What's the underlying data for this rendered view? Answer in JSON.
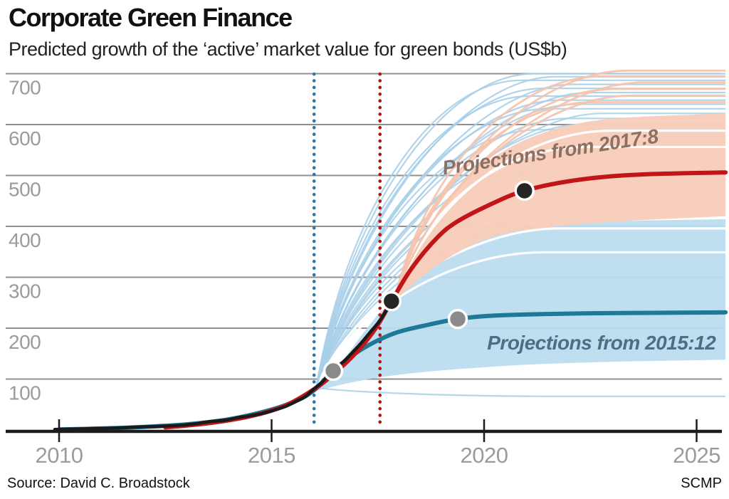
{
  "header": {
    "title": "Corporate Green Finance",
    "subtitle": "Predicted growth of the ‘active’ market value for green bonds (US$b)"
  },
  "footer": {
    "source": "Source: David C. Broadstock",
    "credit": "SCMP"
  },
  "colors": {
    "grid": "#909090",
    "axis": "#1b1b1b",
    "tick_label": "#9b9b9b",
    "band_blue": "#bcdcee",
    "spaghetti_blue": "#a9cfe9",
    "band_peach": "#f8cdba",
    "spaghetti_peach": "#f6c4ae",
    "white_arc": "#ffffff",
    "historical_line": "#1a1a1a",
    "projection_red": "#c11518",
    "projection_teal": "#1f7897",
    "vline_blue": "#2b77a5",
    "vline_red": "#b11510",
    "marker_black": "#252525",
    "marker_gray": "#8b8b8b",
    "label_2017": "#8c7063",
    "label_2015": "#4a7086"
  },
  "chart_data": {
    "type": "line",
    "title": "Corporate Green Finance",
    "subtitle": "Predicted growth of the 'active' market value for green bonds (US$b)",
    "unit": "US$b",
    "x_axis": {
      "ticks": [
        2010,
        2015,
        2020,
        2025
      ],
      "range": [
        2009.8,
        2025.8
      ],
      "grid": false
    },
    "y_axis": {
      "ticks": [
        100,
        200,
        300,
        400,
        500,
        600,
        700
      ],
      "range": [
        0,
        740
      ],
      "grid": true
    },
    "vlines": [
      {
        "name": "forecast-origin-2015-12",
        "year": 2016.0,
        "color_key": "vline_blue"
      },
      {
        "name": "forecast-origin-2017-8",
        "year": 2017.55,
        "color_key": "vline_red"
      }
    ],
    "series": [
      {
        "name": "historical",
        "color_key": "historical_line",
        "width": 4.5,
        "points": [
          [
            2009.9,
            1
          ],
          [
            2010.4,
            2
          ],
          [
            2010.9,
            3
          ],
          [
            2011.4,
            4
          ],
          [
            2011.9,
            6
          ],
          [
            2012.3,
            7
          ],
          [
            2012.8,
            9
          ],
          [
            2013.2,
            12
          ],
          [
            2013.5,
            16
          ],
          [
            2013.9,
            19
          ],
          [
            2014.2,
            24
          ],
          [
            2014.5,
            28
          ],
          [
            2014.8,
            33
          ],
          [
            2015.1,
            40
          ],
          [
            2015.35,
            47
          ],
          [
            2015.6,
            57
          ],
          [
            2015.8,
            66
          ],
          [
            2016.0,
            81
          ],
          [
            2016.2,
            95
          ],
          [
            2016.45,
            118
          ],
          [
            2016.7,
            135
          ],
          [
            2016.9,
            152
          ],
          [
            2017.1,
            170
          ],
          [
            2017.3,
            190
          ],
          [
            2017.5,
            210
          ],
          [
            2017.65,
            228
          ],
          [
            2017.82,
            253
          ]
        ]
      },
      {
        "name": "projection_2017_8",
        "color_key": "projection_red",
        "width": 6,
        "points": [
          [
            2012.5,
            5
          ],
          [
            2013.5,
            13
          ],
          [
            2014.5,
            27
          ],
          [
            2015.3,
            47
          ],
          [
            2016,
            80
          ],
          [
            2016.5,
            113
          ],
          [
            2017,
            153
          ],
          [
            2017.45,
            200
          ],
          [
            2017.82,
            253
          ],
          [
            2018.3,
            318
          ],
          [
            2018.9,
            378
          ],
          [
            2019.4,
            411
          ],
          [
            2020.3,
            449
          ],
          [
            2020.95,
            470
          ],
          [
            2021.8,
            486
          ],
          [
            2022.8,
            497
          ],
          [
            2024,
            503
          ],
          [
            2025.68,
            506
          ]
        ]
      },
      {
        "name": "projection_2015_12",
        "color_key": "projection_teal",
        "width": 6,
        "points": [
          [
            2010,
            1
          ],
          [
            2011,
            3
          ],
          [
            2012,
            6
          ],
          [
            2013,
            11
          ],
          [
            2014,
            21
          ],
          [
            2015,
            40
          ],
          [
            2015.6,
            58
          ],
          [
            2016,
            78
          ],
          [
            2016.45,
            116
          ],
          [
            2017,
            152
          ],
          [
            2017.5,
            176
          ],
          [
            2018,
            193
          ],
          [
            2018.7,
            207
          ],
          [
            2019.38,
            218
          ],
          [
            2020.1,
            224
          ],
          [
            2021,
            227
          ],
          [
            2022.3,
            229
          ],
          [
            2023.6,
            230
          ],
          [
            2025.68,
            231
          ]
        ]
      }
    ],
    "bands": [
      {
        "name": "fan_2015_12",
        "color_key": "band_blue",
        "opacity": 0.95,
        "top": [
          [
            2016.0,
            82
          ],
          [
            2016.6,
            130
          ],
          [
            2017.2,
            195
          ],
          [
            2017.8,
            258
          ],
          [
            2018.5,
            322
          ],
          [
            2019.2,
            362
          ],
          [
            2020,
            386
          ],
          [
            2021,
            398
          ],
          [
            2022.2,
            406
          ],
          [
            2023.6,
            411
          ],
          [
            2025.68,
            414
          ]
        ],
        "bottom": [
          [
            2016.0,
            76
          ],
          [
            2016.8,
            92
          ],
          [
            2017.6,
            104
          ],
          [
            2018.6,
            114
          ],
          [
            2019.8,
            122
          ],
          [
            2021.2,
            129
          ],
          [
            2023,
            134
          ],
          [
            2025.68,
            138
          ]
        ]
      },
      {
        "name": "fan_2017_8",
        "color_key": "band_peach",
        "opacity": 0.97,
        "top": [
          [
            2017.85,
            258
          ],
          [
            2018.4,
            345
          ],
          [
            2019,
            440
          ],
          [
            2019.7,
            500
          ],
          [
            2020.4,
            545
          ],
          [
            2021.2,
            578
          ],
          [
            2022.2,
            602
          ],
          [
            2023.4,
            614
          ],
          [
            2025.68,
            622
          ]
        ],
        "bottom": [
          [
            2017.85,
            250
          ],
          [
            2018.6,
            305
          ],
          [
            2019.4,
            350
          ],
          [
            2020.3,
            382
          ],
          [
            2021.5,
            398
          ],
          [
            2023,
            409
          ],
          [
            2025.68,
            420
          ]
        ]
      }
    ],
    "spaghetti": {
      "blue_origin": [
        2016.05,
        83
      ],
      "peach_origin": [
        2017.9,
        258
      ],
      "blue_under": [
        [
          622,
          2020.6
        ],
        [
          612,
          2019.8
        ],
        [
          601,
          2020.2
        ],
        [
          590,
          2019.1
        ],
        [
          578,
          2020.8
        ],
        [
          565,
          2020.1
        ],
        [
          552,
          2019.5
        ],
        [
          538,
          2020.4
        ],
        [
          524,
          2019.9
        ],
        [
          508,
          2020.9
        ],
        [
          490,
          2020.3
        ],
        [
          472,
          2019.7
        ],
        [
          453,
          2020.6
        ],
        [
          435,
          2020.0
        ],
        [
          66,
          2019.4
        ]
      ],
      "blue_over": [
        [
          700,
          2019.0
        ],
        [
          694,
          2019.5
        ],
        [
          687,
          2018.7
        ],
        [
          679,
          2019.9
        ],
        [
          671,
          2019.2
        ],
        [
          663,
          2020.3
        ],
        [
          656,
          2018.9
        ],
        [
          648,
          2019.6
        ],
        [
          640,
          2020.0
        ],
        [
          631,
          2019.3
        ]
      ],
      "peach": [
        [
          706,
          2021.2
        ],
        [
          695,
          2020.6
        ],
        [
          683,
          2021.6
        ],
        [
          670,
          2020.9
        ],
        [
          657,
          2021.3
        ],
        [
          644,
          2020.4
        ]
      ],
      "white_in_blue": [
        [
          417,
          2019.9
        ],
        [
          396,
          2019.6
        ],
        [
          349,
          2019.2
        ]
      ],
      "white_in_peach": [
        [
          588,
          2020.8
        ],
        [
          556,
          2020.2
        ]
      ]
    },
    "markers": [
      {
        "name": "actual-at-2015-12",
        "year": 2016.45,
        "value": 116,
        "color_key": "marker_gray"
      },
      {
        "name": "actual-at-2017-8",
        "year": 2017.82,
        "value": 253,
        "color_key": "marker_black"
      },
      {
        "name": "teal-projection-dot",
        "year": 2019.38,
        "value": 218,
        "color_key": "marker_gray"
      },
      {
        "name": "red-projection-dot",
        "year": 2020.95,
        "value": 470,
        "color_key": "marker_black"
      }
    ],
    "annotations": [
      {
        "name": "label-projections-2017-8",
        "text": "Projections from 2017:8",
        "year": 2021.55,
        "value": 545,
        "rotate": -8.5,
        "color_key": "label_2017"
      },
      {
        "name": "label-projections-2015-12",
        "text": "Projections from 2015:12",
        "year": 2022.76,
        "value": 171,
        "rotate": 0,
        "color_key": "label_2015"
      }
    ]
  }
}
